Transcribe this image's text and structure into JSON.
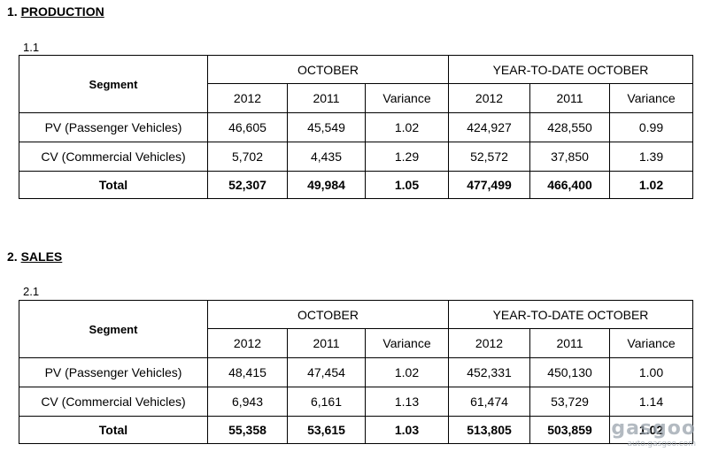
{
  "sections": [
    {
      "title_num": "1.",
      "title": "PRODUCTION",
      "sub": "1.1",
      "header": {
        "segment": "Segment",
        "group_a": "OCTOBER",
        "group_b": "YEAR-TO-DATE OCTOBER",
        "cols": [
          "2012",
          "2011",
          "Variance",
          "2012",
          "2011",
          "Variance"
        ]
      },
      "rows": [
        {
          "label": "PV (Passenger Vehicles)",
          "values": [
            "46,605",
            "45,549",
            "1.02",
            "424,927",
            "428,550",
            "0.99"
          ]
        },
        {
          "label": "CV (Commercial Vehicles)",
          "values": [
            "5,702",
            "4,435",
            "1.29",
            "52,572",
            "37,850",
            "1.39"
          ]
        }
      ],
      "total": {
        "label": "Total",
        "values": [
          "52,307",
          "49,984",
          "1.05",
          "477,499",
          "466,400",
          "1.02"
        ]
      }
    },
    {
      "title_num": "2.",
      "title": "SALES",
      "sub": "2.1",
      "header": {
        "segment": "Segment",
        "group_a": "OCTOBER",
        "group_b": "YEAR-TO-DATE OCTOBER",
        "cols": [
          "2012",
          "2011",
          "Variance",
          "2012",
          "2011",
          "Variance"
        ]
      },
      "rows": [
        {
          "label": "PV (Passenger Vehicles)",
          "values": [
            "48,415",
            "47,454",
            "1.02",
            "452,331",
            "450,130",
            "1.00"
          ]
        },
        {
          "label": "CV (Commercial Vehicles)",
          "values": [
            "6,943",
            "6,161",
            "1.13",
            "61,474",
            "53,729",
            "1.14"
          ]
        }
      ],
      "total": {
        "label": "Total",
        "values": [
          "55,358",
          "53,615",
          "1.03",
          "513,805",
          "503,859",
          "1.02"
        ]
      }
    }
  ],
  "watermark": {
    "brand": "gasgoo",
    "site": "auto.gasgoo.com"
  }
}
